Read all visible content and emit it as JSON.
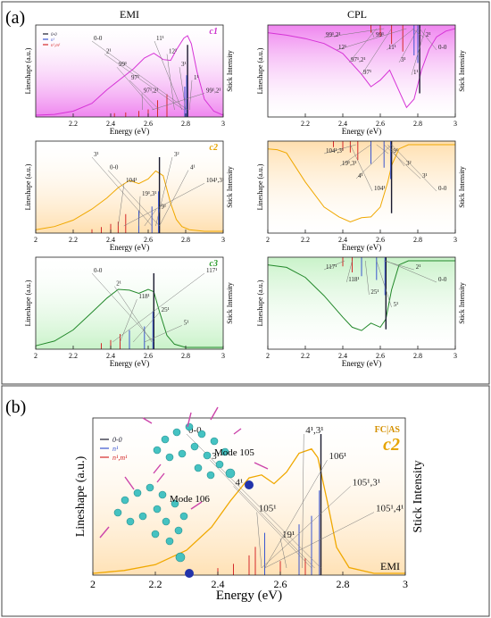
{
  "panel_a": {
    "label": "(a)",
    "column_titles": [
      "EMI",
      "CPL"
    ],
    "axis": {
      "xlabel": "Energy (eV)",
      "ylabel": "Lineshape (a.u.)",
      "y2label": "Stick Intensity"
    },
    "legend": [
      {
        "label": "0-0",
        "color": "#1a1a2e"
      },
      {
        "label": "n¹",
        "color": "#3a55d0"
      },
      {
        "label": "n¹,m¹",
        "color": "#d42a2a"
      }
    ]
  },
  "panel_b": {
    "label": "(b)",
    "fc_label": "FC|AS",
    "conformer": "c2",
    "corner_label": "EMI",
    "mode_labels": [
      "Mode 105",
      "Mode 106"
    ],
    "axis": {
      "xlabel": "Energy (eV)",
      "ylabel": "Lineshape (a.u.)",
      "y2label": "Stick Intensity"
    },
    "legend": [
      {
        "label": "0-0",
        "color": "#1a1a2e"
      },
      {
        "label": "n¹",
        "color": "#3a55d0"
      },
      {
        "label": "n¹,m¹",
        "color": "#d42a2a"
      }
    ]
  },
  "chart_data": [
    {
      "type": "line",
      "id": "emi-c1",
      "conformer": "c1",
      "conf_color": "#cc33cc",
      "curve_color": "#d633d6",
      "fill": "#ec6fec",
      "xlim": [
        2,
        3
      ],
      "xticks": [
        2.2,
        2.4,
        2.6,
        2.8,
        3
      ],
      "xtick_labels": [
        "2.2",
        "2.4",
        "2.6",
        "2.8",
        "3"
      ],
      "series": [
        {
          "x": [
            2.0,
            2.1,
            2.2,
            2.3,
            2.38,
            2.45,
            2.52,
            2.58,
            2.63,
            2.68,
            2.72,
            2.75,
            2.79,
            2.81,
            2.83,
            2.86,
            2.9,
            2.95,
            3.0
          ],
          "y": [
            0.0,
            0.01,
            0.05,
            0.15,
            0.32,
            0.45,
            0.58,
            0.72,
            0.78,
            0.7,
            0.69,
            0.82,
            0.97,
            1.0,
            0.9,
            0.55,
            0.2,
            0.05,
            0.0
          ]
        }
      ],
      "zero_zero": 2.81,
      "sticks": [
        [
          2.81,
          0.95,
          "0"
        ],
        [
          2.805,
          0.55,
          "b"
        ],
        [
          2.795,
          0.4,
          "b"
        ],
        [
          2.7,
          0.3,
          "r"
        ],
        [
          2.65,
          0.22,
          "r"
        ],
        [
          2.6,
          0.1,
          "r"
        ],
        [
          2.55,
          0.08,
          "r"
        ],
        [
          2.48,
          0.06,
          "r"
        ],
        [
          2.42,
          0.05,
          "r"
        ]
      ],
      "annotations": [
        {
          "t": "0-0",
          "x": 2.81
        },
        {
          "t": "2¹",
          "x": 2.79
        },
        {
          "t": "99¹",
          "x": 2.63
        },
        {
          "t": "97¹",
          "x": 2.66
        },
        {
          "t": "97¹,2¹",
          "x": 2.57
        },
        {
          "t": "11¹",
          "x": 2.78
        },
        {
          "t": "12¹",
          "x": 2.74
        },
        {
          "t": "3¹",
          "x": 2.8
        },
        {
          "t": "1¹",
          "x": 2.82
        },
        {
          "t": "99¹,2¹",
          "x": 2.62
        }
      ]
    },
    {
      "type": "line",
      "id": "cpl-c1",
      "conformer": "",
      "conf_color": "#cc33cc",
      "curve_color": "#d633d6",
      "fill": "#ec6fec",
      "flip": true,
      "xlim": [
        2,
        3
      ],
      "xticks": [
        2.2,
        2.4,
        2.6,
        2.8,
        3
      ],
      "xtick_labels": [
        "2.2",
        "2.4",
        "2.6",
        "2.8",
        "3"
      ],
      "series": [
        {
          "x": [
            2.0,
            2.1,
            2.2,
            2.3,
            2.4,
            2.5,
            2.55,
            2.6,
            2.65,
            2.7,
            2.74,
            2.78,
            2.82,
            2.86,
            2.9,
            2.95,
            3.0
          ],
          "y": [
            0.05,
            0.08,
            0.12,
            0.18,
            0.3,
            0.55,
            0.7,
            0.62,
            0.5,
            0.75,
            0.95,
            0.85,
            0.5,
            0.25,
            0.1,
            0.03,
            0.0
          ]
        }
      ],
      "zero_zero": 2.81,
      "sticks": [
        [
          2.81,
          0.9,
          "0"
        ],
        [
          2.8,
          0.5,
          "b"
        ],
        [
          2.78,
          0.4,
          "b"
        ],
        [
          2.72,
          0.35,
          "r"
        ],
        [
          2.66,
          0.25,
          "r"
        ],
        [
          2.6,
          0.15,
          "r"
        ],
        [
          2.55,
          0.1,
          "r"
        ]
      ],
      "annotations": [
        {
          "t": "99¹,2¹",
          "x": 2.62
        },
        {
          "t": "12¹",
          "x": 2.74
        },
        {
          "t": "97¹,2¹",
          "x": 2.58
        },
        {
          "t": "97¹",
          "x": 2.66
        },
        {
          "t": "99¹",
          "x": 2.55
        },
        {
          "t": "11¹",
          "x": 2.78
        },
        {
          "t": "3¹",
          "x": 2.8
        },
        {
          "t": "1¹",
          "x": 2.84
        },
        {
          "t": "2¹",
          "x": 2.77
        },
        {
          "t": "0-0",
          "x": 2.81
        }
      ]
    },
    {
      "type": "line",
      "id": "emi-c2",
      "conformer": "c2",
      "conf_color": "#e6a400",
      "curve_color": "#f0a800",
      "fill": "#ffd9a0",
      "xlim": [
        2,
        3
      ],
      "xticks": [
        2,
        2.2,
        2.4,
        2.6,
        2.8,
        3
      ],
      "xtick_labels": [
        "2",
        "2.2",
        "2.4",
        "2.6",
        "2.8",
        "3"
      ],
      "series": [
        {
          "x": [
            2.0,
            2.1,
            2.2,
            2.3,
            2.38,
            2.44,
            2.5,
            2.55,
            2.6,
            2.64,
            2.68,
            2.72,
            2.75,
            2.78,
            2.82,
            2.9,
            3.0
          ],
          "y": [
            0.02,
            0.06,
            0.14,
            0.28,
            0.42,
            0.55,
            0.64,
            0.6,
            0.66,
            0.76,
            0.7,
            0.35,
            0.15,
            0.06,
            0.02,
            0.0,
            0.0
          ]
        }
      ],
      "zero_zero": 2.66,
      "sticks": [
        [
          2.66,
          1.0,
          "0"
        ],
        [
          2.655,
          0.55,
          "b"
        ],
        [
          2.62,
          0.35,
          "b"
        ],
        [
          2.55,
          0.3,
          "b"
        ],
        [
          2.48,
          0.25,
          "r"
        ],
        [
          2.44,
          0.15,
          "r"
        ],
        [
          2.4,
          0.12,
          "r"
        ],
        [
          2.35,
          0.08,
          "r"
        ],
        [
          2.3,
          0.05,
          "r"
        ]
      ],
      "annotations": [
        {
          "t": "3¹",
          "x": 2.62
        },
        {
          "t": "0-0",
          "x": 2.66
        },
        {
          "t": "104¹",
          "x": 2.44
        },
        {
          "t": "19¹,3¹",
          "x": 2.55
        },
        {
          "t": "19¹",
          "x": 2.58
        },
        {
          "t": "3²",
          "x": 2.64
        },
        {
          "t": "4¹",
          "x": 2.66
        },
        {
          "t": "104¹,3¹",
          "x": 2.47
        }
      ]
    },
    {
      "type": "line",
      "id": "cpl-c2",
      "conformer": "",
      "conf_color": "#e6a400",
      "curve_color": "#f0a800",
      "fill": "#ffd9a0",
      "flip": true,
      "xlim": [
        2,
        3
      ],
      "xticks": [
        2,
        2.2,
        2.4,
        2.6,
        2.8,
        3
      ],
      "xtick_labels": [
        "2",
        "2.2",
        "2.4",
        "2.6",
        "2.8",
        "3"
      ],
      "series": [
        {
          "x": [
            2.0,
            2.05,
            2.1,
            2.2,
            2.3,
            2.38,
            2.44,
            2.5,
            2.55,
            2.6,
            2.64,
            2.66,
            2.7,
            2.75,
            2.8,
            2.9,
            3.0
          ],
          "y": [
            0.05,
            0.06,
            0.1,
            0.45,
            0.75,
            0.87,
            0.93,
            0.88,
            0.87,
            0.75,
            0.45,
            0.25,
            0.05,
            0.0,
            0.0,
            0.0,
            0.0
          ]
        }
      ],
      "zero_zero": 2.66,
      "sticks": [
        [
          2.66,
          0.95,
          "0"
        ],
        [
          2.655,
          0.5,
          "b"
        ],
        [
          2.62,
          0.35,
          "b"
        ],
        [
          2.55,
          0.3,
          "b"
        ],
        [
          2.48,
          0.25,
          "r"
        ],
        [
          2.44,
          0.15,
          "r"
        ],
        [
          2.4,
          0.12,
          "r"
        ],
        [
          2.35,
          0.08,
          "r"
        ]
      ],
      "annotations": [
        {
          "t": "104¹,3¹",
          "x": 2.47
        },
        {
          "t": "19¹,3¹",
          "x": 2.55
        },
        {
          "t": "4¹",
          "x": 2.66
        },
        {
          "t": "104¹",
          "x": 2.44
        },
        {
          "t": "19¹",
          "x": 2.58
        },
        {
          "t": "3²",
          "x": 2.64
        },
        {
          "t": "3¹",
          "x": 2.62
        },
        {
          "t": "0-0",
          "x": 2.66
        }
      ]
    },
    {
      "type": "line",
      "id": "emi-c3",
      "conformer": "c3",
      "conf_color": "#2a9a2a",
      "curve_color": "#22882a",
      "fill": "#bff0bf",
      "xlim": [
        2,
        3
      ],
      "xticks": [
        2,
        2.2,
        2.4,
        2.6,
        2.8,
        3
      ],
      "xtick_labels": [
        "2",
        "2.2",
        "2.4",
        "2.6",
        "2.8",
        "3"
      ],
      "series": [
        {
          "x": [
            2.0,
            2.1,
            2.2,
            2.3,
            2.38,
            2.44,
            2.5,
            2.55,
            2.6,
            2.63,
            2.66,
            2.7,
            2.74,
            2.8,
            2.9,
            3.0
          ],
          "y": [
            0.02,
            0.08,
            0.22,
            0.44,
            0.62,
            0.73,
            0.72,
            0.68,
            0.73,
            0.7,
            0.45,
            0.15,
            0.04,
            0.0,
            0.0,
            0.0
          ]
        }
      ],
      "zero_zero": 2.63,
      "sticks": [
        [
          2.63,
          1.0,
          "0"
        ],
        [
          2.625,
          0.5,
          "b"
        ],
        [
          2.58,
          0.3,
          "b"
        ],
        [
          2.5,
          0.25,
          "b"
        ],
        [
          2.45,
          0.2,
          "r"
        ],
        [
          2.4,
          0.12,
          "r"
        ],
        [
          2.35,
          0.08,
          "r"
        ]
      ],
      "annotations": [
        {
          "t": "0-0",
          "x": 2.63
        },
        {
          "t": "2¹",
          "x": 2.62
        },
        {
          "t": "118¹",
          "x": 2.45
        },
        {
          "t": "25¹",
          "x": 2.52
        },
        {
          "t": "5¹",
          "x": 2.58
        },
        {
          "t": "117¹",
          "x": 2.41
        }
      ]
    },
    {
      "type": "line",
      "id": "cpl-c3",
      "conformer": "",
      "conf_color": "#2a9a2a",
      "curve_color": "#22882a",
      "fill": "#bff0bf",
      "flip": true,
      "xlim": [
        2,
        3
      ],
      "xticks": [
        2,
        2.2,
        2.4,
        2.6,
        2.8,
        3
      ],
      "xtick_labels": [
        "2",
        "2.2",
        "2.4",
        "2.6",
        "2.8",
        "3"
      ],
      "series": [
        {
          "x": [
            2.0,
            2.1,
            2.2,
            2.3,
            2.4,
            2.45,
            2.5,
            2.55,
            2.6,
            2.63,
            2.66,
            2.7,
            2.75,
            2.8,
            3.0
          ],
          "y": [
            0.05,
            0.08,
            0.2,
            0.42,
            0.68,
            0.8,
            0.84,
            0.75,
            0.8,
            0.7,
            0.35,
            0.05,
            0.0,
            0.0,
            0.0
          ]
        }
      ],
      "zero_zero": 2.63,
      "sticks": [
        [
          2.63,
          0.95,
          "0"
        ],
        [
          2.625,
          0.5,
          "b"
        ],
        [
          2.58,
          0.3,
          "b"
        ],
        [
          2.5,
          0.25,
          "b"
        ],
        [
          2.45,
          0.2,
          "r"
        ],
        [
          2.4,
          0.12,
          "r"
        ]
      ],
      "annotations": [
        {
          "t": "117¹",
          "x": 2.41
        },
        {
          "t": "118¹",
          "x": 2.45
        },
        {
          "t": "25¹",
          "x": 2.52
        },
        {
          "t": "5¹",
          "x": 2.58
        },
        {
          "t": "2¹",
          "x": 2.62
        },
        {
          "t": "0-0",
          "x": 2.63
        }
      ]
    },
    {
      "type": "line",
      "id": "big-c2",
      "conformer": "c2",
      "conf_color": "#e6a400",
      "curve_color": "#f0a800",
      "fill": "#ffdca8",
      "xlim": [
        2,
        3
      ],
      "xticks": [
        2,
        2.2,
        2.4,
        2.6,
        2.8,
        3
      ],
      "xtick_labels": [
        "2",
        "2.2",
        "2.4",
        "2.6",
        "2.8",
        "3"
      ],
      "series": [
        {
          "x": [
            2.0,
            2.1,
            2.2,
            2.3,
            2.38,
            2.44,
            2.5,
            2.54,
            2.58,
            2.62,
            2.66,
            2.7,
            2.72,
            2.75,
            2.78,
            2.82,
            2.9,
            3.0
          ],
          "y": [
            0.0,
            0.02,
            0.06,
            0.16,
            0.32,
            0.5,
            0.66,
            0.68,
            0.62,
            0.7,
            0.83,
            0.86,
            0.8,
            0.5,
            0.18,
            0.04,
            0.0,
            0.0
          ]
        }
      ],
      "zero_zero": 2.73,
      "sticks": [
        [
          2.73,
          1.0,
          "0"
        ],
        [
          2.725,
          0.6,
          "b"
        ],
        [
          2.7,
          0.42,
          "b"
        ],
        [
          2.66,
          0.36,
          "b"
        ],
        [
          2.55,
          0.3,
          "b"
        ],
        [
          2.52,
          0.2,
          "r"
        ],
        [
          2.5,
          0.14,
          "r"
        ],
        [
          2.45,
          0.08,
          "r"
        ],
        [
          2.4,
          0.05,
          "r"
        ],
        [
          2.6,
          0.1,
          "r"
        ],
        [
          2.68,
          0.12,
          "r"
        ]
      ],
      "annotations": [
        {
          "t": "0-0",
          "x": 2.73
        },
        {
          "t": "3¹",
          "x": 2.71
        },
        {
          "t": "4¹",
          "x": 2.7
        },
        {
          "t": "105¹",
          "x": 2.54
        },
        {
          "t": "19¹",
          "x": 2.62
        },
        {
          "t": "4¹,3¹",
          "x": 2.67
        },
        {
          "t": "106¹",
          "x": 2.55
        },
        {
          "t": "105¹,3¹",
          "x": 2.54
        },
        {
          "t": "105¹,4¹",
          "x": 2.55
        }
      ]
    }
  ]
}
